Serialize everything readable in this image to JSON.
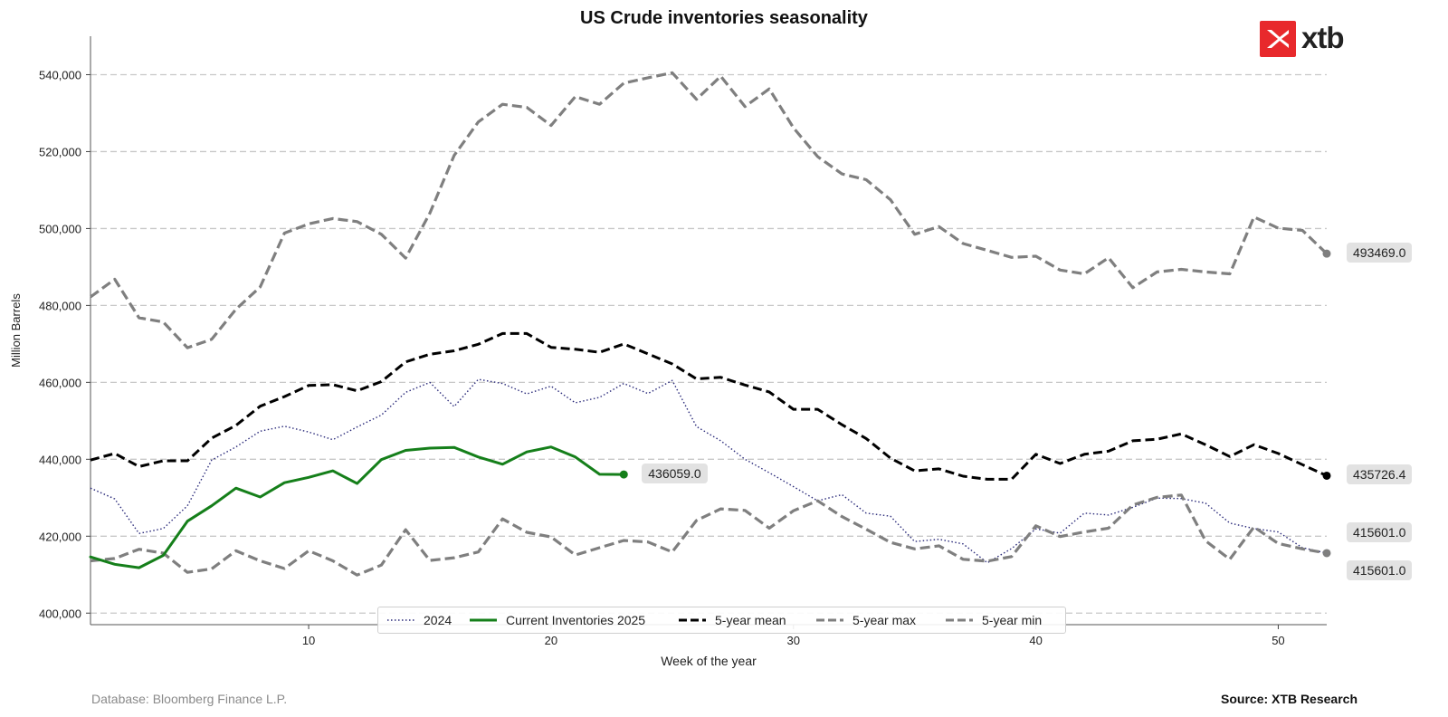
{
  "title": "US Crude inventories seasonality",
  "logo_text": "xtb",
  "footer": {
    "database": "Database: Bloomberg Finance L.P.",
    "source": "Source: XTB Research"
  },
  "colors": {
    "current": "#157f1a",
    "mean": "#000000",
    "band": "#7f7f7f",
    "y2024": "#2a2a7a",
    "brand": "#e8292c"
  },
  "end_labels": {
    "current": "436059.0",
    "max": "493469.0",
    "mean": "435726.4",
    "y2024": "415601.0",
    "min": "415601.0"
  },
  "chart_data": {
    "type": "line",
    "title": "US Crude inventories seasonality",
    "xlabel": "Week of the year",
    "ylabel": "Million Barrels",
    "xlim": [
      1,
      52
    ],
    "ylim": [
      397000,
      550000
    ],
    "xticks": [
      10,
      20,
      30,
      40,
      50
    ],
    "yticks": [
      400000,
      420000,
      440000,
      460000,
      480000,
      500000,
      520000,
      540000
    ],
    "ytick_labels": [
      "400,000",
      "420,000",
      "440,000",
      "460,000",
      "480,000",
      "500,000",
      "520,000",
      "540,000"
    ],
    "grid": "horizontal dashed",
    "legend_position": "bottom-center",
    "series": [
      {
        "name": "2024",
        "style": "dotted",
        "x_start": 1,
        "values": [
          432500,
          429700,
          420700,
          422000,
          427900,
          439800,
          443200,
          447300,
          448600,
          447100,
          445100,
          448400,
          451500,
          457400,
          460000,
          453700,
          460800,
          459700,
          457000,
          459000,
          454700,
          456100,
          459700,
          457100,
          460500,
          448500,
          444800,
          440000,
          436500,
          432900,
          429200,
          430800,
          426000,
          425200,
          418600,
          419200,
          418000,
          413100,
          416800,
          421900,
          420800,
          426000,
          425500,
          427500,
          429900,
          429800,
          428600,
          423400,
          422000,
          421100,
          417000,
          415601
        ]
      },
      {
        "name": "Current Inventories 2025",
        "style": "solid",
        "x_start": 1,
        "values": [
          414600,
          412700,
          411800,
          415000,
          423900,
          427900,
          432500,
          430200,
          433900,
          435300,
          437000,
          433700,
          439900,
          442300,
          442900,
          443100,
          440600,
          438700,
          441900,
          443200,
          440600,
          436100,
          436059
        ]
      },
      {
        "name": "5-year mean",
        "style": "dashed",
        "x_start": 1,
        "values": [
          439800,
          441500,
          438100,
          439600,
          439600,
          445500,
          448800,
          453800,
          456300,
          459200,
          459400,
          457800,
          460200,
          465300,
          467300,
          468200,
          469900,
          472700,
          472700,
          469100,
          468600,
          467800,
          470000,
          467400,
          464800,
          460900,
          461300,
          459300,
          457500,
          453000,
          453000,
          449000,
          445400,
          440300,
          437000,
          437500,
          435600,
          434800,
          434800,
          441300,
          438900,
          441300,
          442100,
          444800,
          445200,
          446600,
          443800,
          440700,
          443800,
          441500,
          438600,
          435726.4
        ]
      },
      {
        "name": "5-year max",
        "style": "dashed",
        "x_start": 1,
        "values": [
          482200,
          486800,
          476800,
          475700,
          469000,
          471200,
          479000,
          484800,
          498800,
          501200,
          502600,
          501800,
          498500,
          492300,
          504000,
          519000,
          527700,
          532300,
          531500,
          526800,
          534300,
          532300,
          537800,
          539200,
          540500,
          533600,
          539600,
          531700,
          536300,
          526200,
          518700,
          514200,
          512700,
          507500,
          498500,
          500500,
          496100,
          494300,
          492500,
          492800,
          489200,
          488200,
          492400,
          484600,
          488700,
          489400,
          488700,
          488200,
          503000,
          500100,
          499500,
          493469
        ]
      },
      {
        "name": "5-year min",
        "style": "dashed",
        "x_start": 1,
        "values": [
          413600,
          414200,
          416600,
          415600,
          410600,
          411500,
          416200,
          413600,
          411600,
          416200,
          413600,
          409900,
          412500,
          421700,
          413700,
          414400,
          415900,
          424500,
          421000,
          419800,
          415100,
          417000,
          418900,
          418500,
          415900,
          424100,
          427100,
          426700,
          422100,
          426600,
          429200,
          425100,
          421800,
          418400,
          416700,
          417500,
          414000,
          413500,
          414700,
          422700,
          419900,
          421100,
          422100,
          428100,
          430100,
          430700,
          418800,
          414000,
          422400,
          418100,
          416700,
          415601
        ]
      }
    ]
  }
}
